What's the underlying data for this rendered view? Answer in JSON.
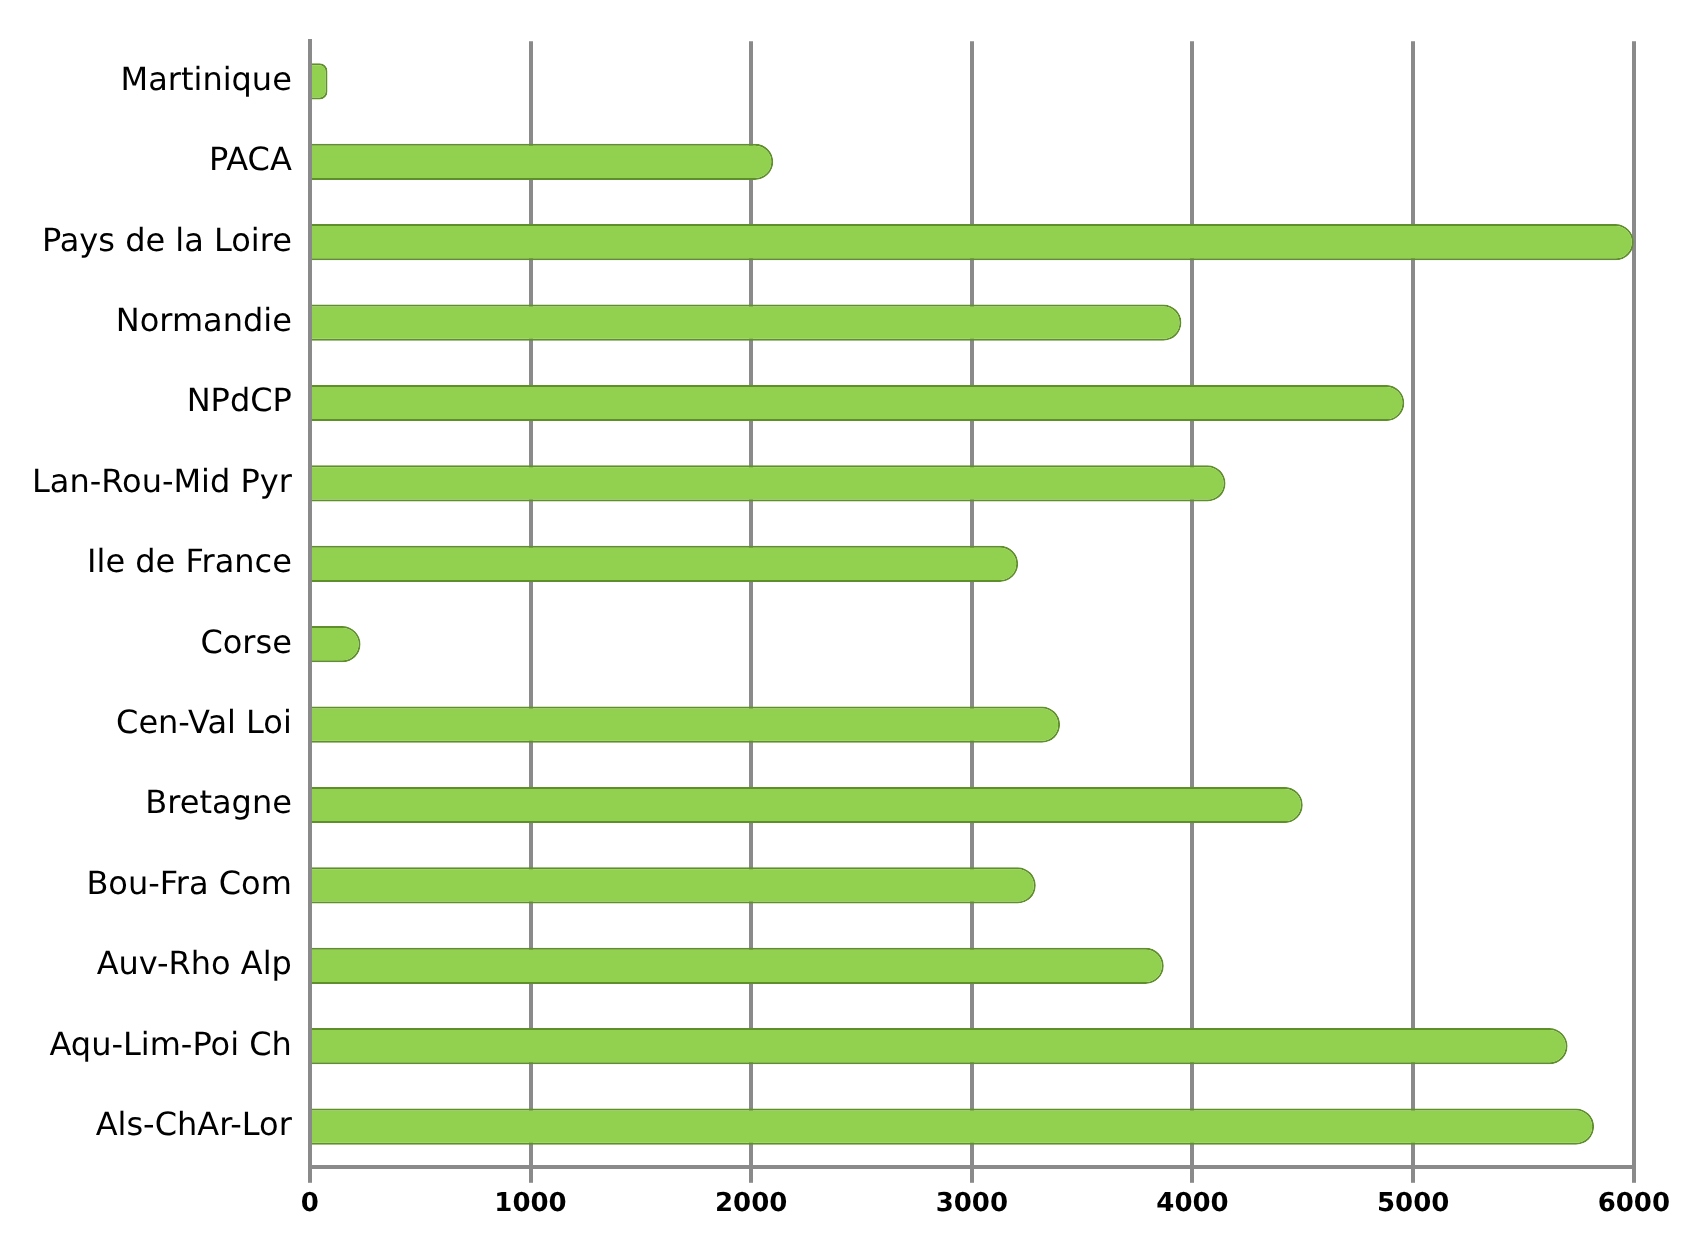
{
  "chart_data": {
    "type": "bar",
    "orientation": "horizontal",
    "categories": [
      "Martinique",
      "PACA",
      "Pays de la Loire",
      "Normandie",
      "NPdCP",
      "Lan-Rou-Mid Pyr",
      "Ile de France",
      "Corse",
      "Cen-Val Loi",
      "Bretagne",
      "Bou-Fra Com",
      "Auv-Rho Alp",
      "Aqu-Lim-Poi Ch",
      "Als-ChAr-Lor"
    ],
    "values": [
      80,
      2100,
      6000,
      3950,
      4960,
      4150,
      3210,
      230,
      3400,
      4500,
      3290,
      3870,
      5700,
      5820
    ],
    "color": "#92d050",
    "xlim": [
      0,
      6000
    ],
    "xticks": [
      0,
      1000,
      2000,
      3000,
      4000,
      5000,
      6000
    ],
    "grid": "x",
    "legend": false
  }
}
